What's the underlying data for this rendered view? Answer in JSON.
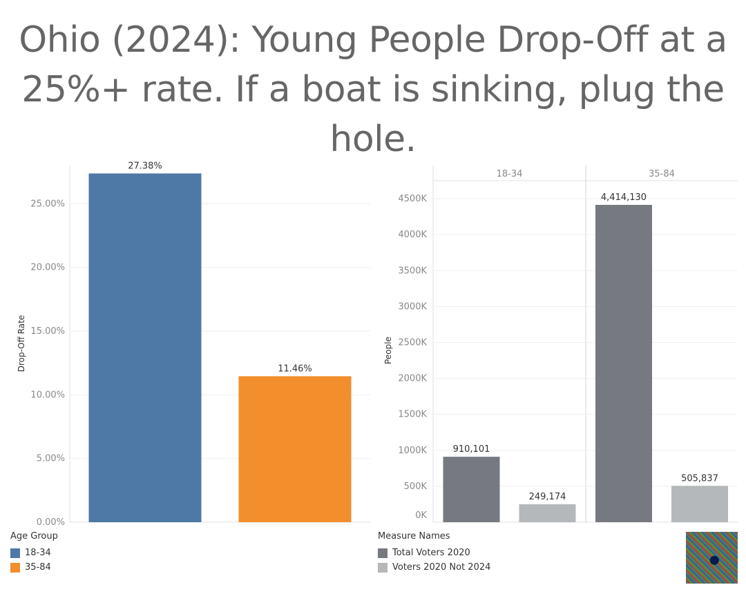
{
  "title_lines": [
    "Ohio (2024): Young People Drop-Off at a",
    "25%+ rate. If a boat is sinking, plug the",
    "hole."
  ],
  "chart_data": [
    {
      "type": "bar",
      "ylabel": "Drop-Off Rate",
      "categories": [
        "18-34",
        "35-84"
      ],
      "values": [
        27.38,
        11.46
      ],
      "data_labels": [
        "27.38%",
        "11.46%"
      ],
      "colors": [
        "#4e79a7",
        "#f28e2b"
      ],
      "ylim": [
        0,
        28
      ],
      "yticks": [
        0,
        5,
        10,
        15,
        20,
        25
      ],
      "ytick_labels": [
        "0.00%",
        "5.00%",
        "10.00%",
        "15.00%",
        "20.00%",
        "25.00%"
      ],
      "grid": true,
      "legend": {
        "title": "Age Group",
        "placement": "bottom-left",
        "items": [
          {
            "label": "18-34",
            "color": "#4e79a7"
          },
          {
            "label": "35-84",
            "color": "#f28e2b"
          }
        ]
      }
    },
    {
      "type": "bar",
      "ylabel": "People",
      "panels": [
        "18-34",
        "35-84"
      ],
      "series": [
        {
          "name": "Total Voters 2020",
          "color": "#76797f",
          "values": [
            910101,
            4414130
          ],
          "labels": [
            "910,101",
            "4,414,130"
          ]
        },
        {
          "name": "Voters 2020 Not 2024",
          "color": "#b5b8ba",
          "values": [
            249174,
            505837
          ],
          "labels": [
            "249,174",
            "505,837"
          ]
        }
      ],
      "ylim": [
        0,
        4750000
      ],
      "yticks": [
        0,
        500000,
        1000000,
        1500000,
        2000000,
        2500000,
        3000000,
        3500000,
        4000000,
        4500000
      ],
      "ytick_labels": [
        "0K",
        "500K",
        "1000K",
        "1500K",
        "2000K",
        "2500K",
        "3000K",
        "3500K",
        "4000K",
        "4500K"
      ],
      "grid": true,
      "legend": {
        "title": "Measure Names",
        "placement": "bottom-center",
        "items": [
          {
            "label": "Total Voters 2020",
            "color": "#76797f"
          },
          {
            "label": "Voters 2020 Not 2024",
            "color": "#b5b8ba"
          }
        ]
      }
    }
  ]
}
